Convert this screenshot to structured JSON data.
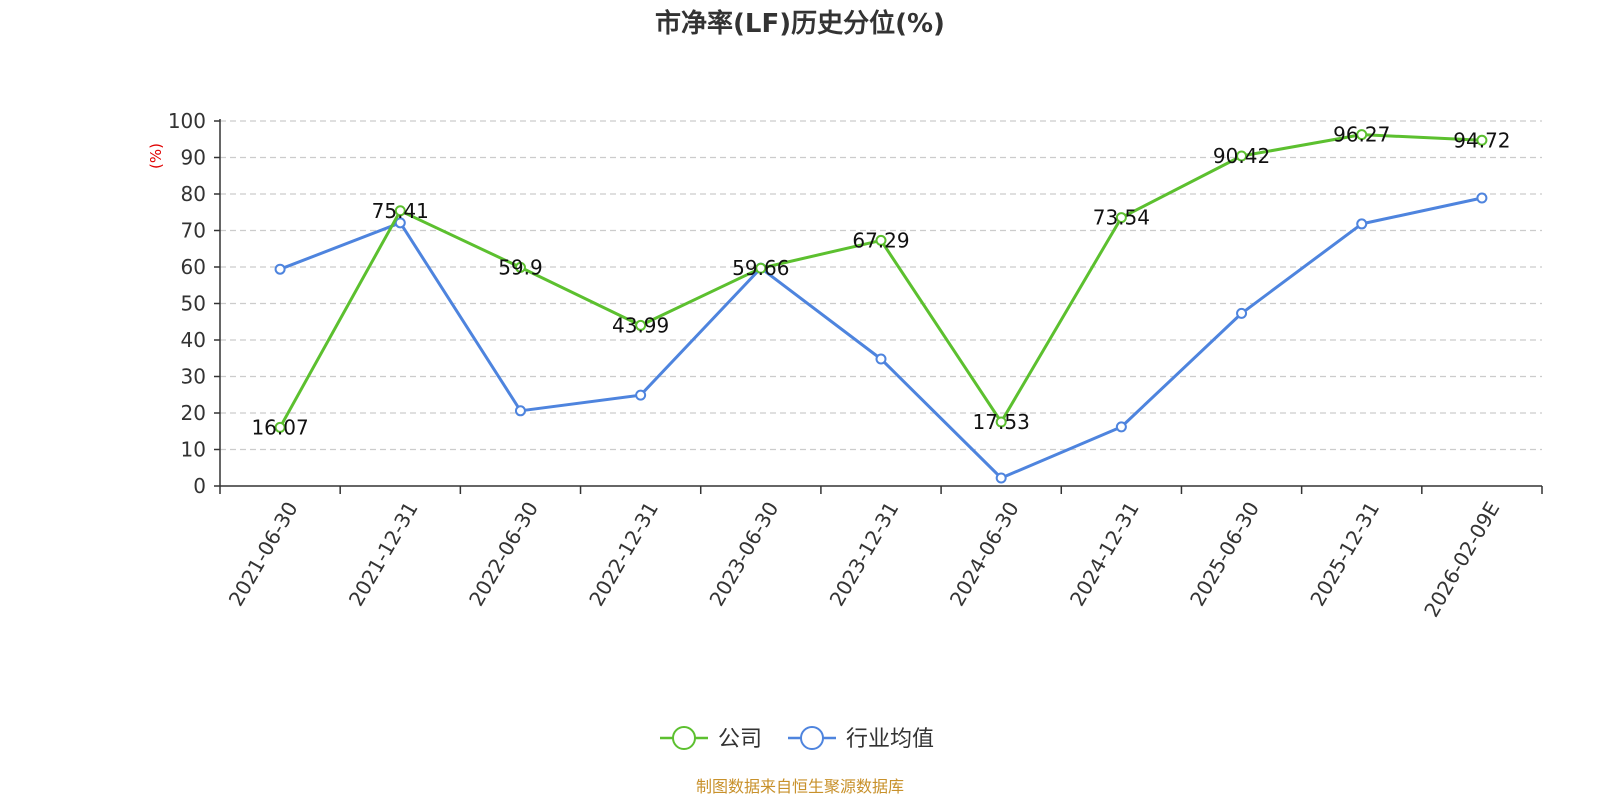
{
  "colors": {
    "company": "#5cc02f",
    "industry": "#4e84de",
    "grid": "#cccccc",
    "axis": "#333333",
    "unit": "#e00000",
    "source": "#c8912b"
  },
  "footer": {
    "source": "制图数据来自恒生聚源数据库"
  },
  "chart_data": {
    "type": "line",
    "title": "市净率(LF)历史分位(%)",
    "ylabel": "(%)",
    "ylim": [
      0,
      100
    ],
    "yticks": [
      0,
      10,
      20,
      30,
      40,
      50,
      60,
      70,
      80,
      90,
      100
    ],
    "grid": true,
    "legend_position": "bottom-center",
    "categories": [
      "2021-06-30",
      "2021-12-31",
      "2022-06-30",
      "2022-12-31",
      "2023-06-30",
      "2023-12-31",
      "2024-06-30",
      "2024-12-31",
      "2025-06-30",
      "2025-12-31",
      "2026-02-09E"
    ],
    "series": [
      {
        "name": "公司",
        "color": "#5cc02f",
        "values": [
          16.07,
          75.41,
          59.9,
          43.99,
          59.66,
          67.29,
          17.53,
          73.54,
          90.42,
          96.27,
          94.72
        ],
        "labels": [
          "16.07",
          "75.41",
          "59.9",
          "43.99",
          "59.66",
          "67.29",
          "17.53",
          "73.54",
          "90.42",
          "96.27",
          "94.72"
        ]
      },
      {
        "name": "行业均值",
        "color": "#4e84de",
        "values": [
          59.4,
          72.1,
          20.6,
          24.9,
          59.7,
          34.8,
          2.2,
          16.2,
          47.3,
          71.8,
          78.9
        ]
      }
    ]
  }
}
